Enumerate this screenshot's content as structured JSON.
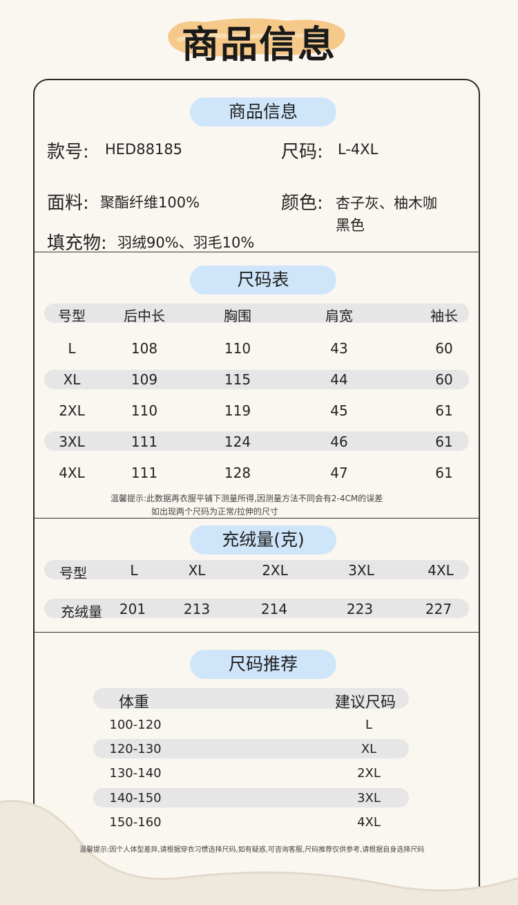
{
  "header": {
    "title": "商品信息"
  },
  "product": {
    "pill": "商品信息",
    "style_key": "款号:",
    "style_val": "HED88185",
    "size_key": "尺码:",
    "size_val": "L-4XL",
    "fabric_key": "面料:",
    "fabric_val": "聚酯纤维100%",
    "color_key": "颜色:",
    "color_val_line1": "杏子灰、柚木咖",
    "color_val_line2": "黑色",
    "filling_key": "填充物:",
    "filling_val": "羽绒90%、羽毛10%"
  },
  "size_chart": {
    "pill": "尺码表",
    "headers": [
      "号型",
      "后中长",
      "胸围",
      "肩宽",
      "袖长"
    ],
    "rows": [
      [
        "L",
        "108",
        "110",
        "43",
        "60"
      ],
      [
        "XL",
        "109",
        "115",
        "44",
        "60"
      ],
      [
        "2XL",
        "110",
        "119",
        "45",
        "61"
      ],
      [
        "3XL",
        "111",
        "124",
        "46",
        "61"
      ],
      [
        "4XL",
        "111",
        "128",
        "47",
        "61"
      ]
    ],
    "note_line1": "温馨提示:此数据再衣服平铺下测量所得,因测量方法不同会有2-4CM的误差",
    "note_line2": "如出现两个尺码为正常/拉伸的尺寸"
  },
  "down_fill": {
    "pill": "充绒量(克)",
    "header_label": "号型",
    "sizes": [
      "L",
      "XL",
      "2XL",
      "3XL",
      "4XL"
    ],
    "row_label": "充绒量",
    "values": [
      "201",
      "213",
      "214",
      "223",
      "227"
    ]
  },
  "recommend": {
    "pill": "尺码推荐",
    "headers": [
      "体重",
      "建议尺码"
    ],
    "rows": [
      [
        "100-120",
        "L"
      ],
      [
        "120-130",
        "XL"
      ],
      [
        "130-140",
        "2XL"
      ],
      [
        "140-150",
        "3XL"
      ],
      [
        "150-160",
        "4XL"
      ]
    ],
    "note": "温馨提示:因个人体型差异,请根据穿衣习惯选择尺码,如有疑惑,可咨询客服,尺码推荐仅供参考,请根据自身选择尺码"
  },
  "colors": {
    "pill": "#cfe6fa",
    "bar": "#e6e6e6",
    "background": "#faf6f0",
    "brush": "#f5c98a"
  }
}
